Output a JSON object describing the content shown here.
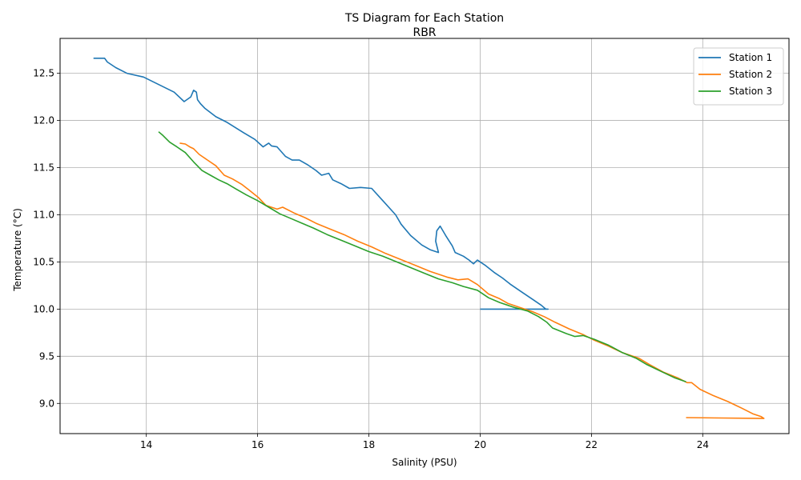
{
  "chart_data": {
    "type": "line",
    "title": "TS Diagram for Each Station",
    "subtitle": "RBR",
    "xlabel": "Salinity (PSU)",
    "ylabel": "Temperature (°C)",
    "xlim": [
      12.45,
      25.55
    ],
    "ylim": [
      8.68,
      12.87
    ],
    "xticks": [
      14,
      16,
      18,
      20,
      22,
      24
    ],
    "yticks": [
      9.0,
      9.5,
      10.0,
      10.5,
      11.0,
      11.5,
      12.0,
      12.5
    ],
    "xtick_labels": [
      "14",
      "16",
      "18",
      "20",
      "22",
      "24"
    ],
    "ytick_labels": [
      "9.0",
      "9.5",
      "10.0",
      "10.5",
      "11.0",
      "11.5",
      "12.0",
      "12.5"
    ],
    "grid": true,
    "legend_position": "top-right",
    "series": [
      {
        "name": "Station 1",
        "color": "#1f77b4",
        "x": [
          13.05,
          13.25,
          13.3,
          13.45,
          13.65,
          13.95,
          14.5,
          14.68,
          14.8,
          14.85,
          14.9,
          14.92,
          14.97,
          15.05,
          15.25,
          15.45,
          15.75,
          15.95,
          16.1,
          16.15,
          16.2,
          16.25,
          16.35,
          16.5,
          16.62,
          16.75,
          16.9,
          17.05,
          17.15,
          17.28,
          17.35,
          17.5,
          17.65,
          17.85,
          18.05,
          18.25,
          18.48,
          18.58,
          18.75,
          18.95,
          19.1,
          19.25,
          19.2,
          19.22,
          19.28,
          19.38,
          19.5,
          19.55,
          19.7,
          19.8,
          19.88,
          19.95,
          20.1,
          20.25,
          20.4,
          20.55,
          20.75,
          20.95,
          21.1,
          21.18,
          21.22,
          20.0
        ],
        "y": [
          12.66,
          12.66,
          12.62,
          12.56,
          12.5,
          12.46,
          12.3,
          12.2,
          12.25,
          12.32,
          12.3,
          12.22,
          12.18,
          12.13,
          12.04,
          11.98,
          11.87,
          11.8,
          11.72,
          11.74,
          11.76,
          11.73,
          11.72,
          11.62,
          11.58,
          11.58,
          11.53,
          11.47,
          11.42,
          11.44,
          11.37,
          11.33,
          11.28,
          11.29,
          11.28,
          11.15,
          11.0,
          10.9,
          10.78,
          10.68,
          10.63,
          10.6,
          10.72,
          10.83,
          10.88,
          10.78,
          10.67,
          10.6,
          10.56,
          10.52,
          10.48,
          10.52,
          10.46,
          10.39,
          10.33,
          10.26,
          10.18,
          10.1,
          10.04,
          10.0,
          10.0,
          10.0
        ]
      },
      {
        "name": "Station 2",
        "color": "#ff7f0e",
        "x": [
          14.6,
          14.7,
          14.78,
          14.85,
          14.95,
          15.1,
          15.25,
          15.4,
          15.55,
          15.72,
          15.85,
          16.02,
          16.15,
          16.35,
          16.45,
          16.65,
          16.85,
          17.05,
          17.3,
          17.55,
          17.8,
          18.05,
          18.3,
          18.6,
          18.85,
          19.1,
          19.4,
          19.6,
          19.78,
          19.95,
          20.15,
          20.35,
          20.5,
          20.7,
          20.95,
          21.15,
          21.35,
          21.6,
          21.85,
          22.05,
          22.3,
          22.55,
          22.85,
          23.05,
          23.3,
          23.55,
          23.72,
          23.8,
          23.95,
          24.2,
          24.45,
          24.7,
          24.9,
          25.05,
          25.1,
          23.7
        ],
        "y": [
          11.76,
          11.75,
          11.72,
          11.7,
          11.64,
          11.58,
          11.52,
          11.42,
          11.38,
          11.32,
          11.26,
          11.18,
          11.1,
          11.06,
          11.08,
          11.02,
          10.97,
          10.91,
          10.85,
          10.79,
          10.72,
          10.66,
          10.59,
          10.52,
          10.46,
          10.4,
          10.34,
          10.31,
          10.32,
          10.26,
          10.16,
          10.11,
          10.06,
          10.02,
          9.97,
          9.92,
          9.86,
          9.79,
          9.73,
          9.67,
          9.61,
          9.54,
          9.48,
          9.41,
          9.33,
          9.27,
          9.22,
          9.22,
          9.15,
          9.08,
          9.02,
          8.95,
          8.89,
          8.86,
          8.84,
          8.85
        ]
      },
      {
        "name": "Station 3",
        "color": "#2ca02c",
        "x": [
          14.22,
          14.3,
          14.42,
          14.55,
          14.7,
          14.85,
          15.0,
          15.15,
          15.3,
          15.45,
          15.62,
          15.8,
          16.0,
          16.2,
          16.4,
          16.6,
          16.8,
          17.0,
          17.25,
          17.5,
          17.75,
          18.0,
          18.25,
          18.5,
          18.75,
          19.0,
          19.25,
          19.5,
          19.7,
          19.95,
          20.15,
          20.35,
          20.6,
          20.85,
          21.05,
          21.2,
          21.3,
          21.55,
          21.7,
          21.85,
          22.05,
          22.3,
          22.55,
          22.8,
          23.0,
          23.25,
          23.5,
          23.7
        ],
        "y": [
          11.88,
          11.84,
          11.77,
          11.72,
          11.66,
          11.56,
          11.47,
          11.42,
          11.37,
          11.33,
          11.27,
          11.21,
          11.15,
          11.08,
          11.01,
          10.96,
          10.91,
          10.86,
          10.79,
          10.73,
          10.67,
          10.61,
          10.56,
          10.5,
          10.44,
          10.38,
          10.32,
          10.28,
          10.24,
          10.2,
          10.12,
          10.07,
          10.02,
          9.98,
          9.92,
          9.86,
          9.8,
          9.74,
          9.71,
          9.72,
          9.68,
          9.62,
          9.54,
          9.48,
          9.41,
          9.34,
          9.27,
          9.23
        ]
      }
    ]
  }
}
